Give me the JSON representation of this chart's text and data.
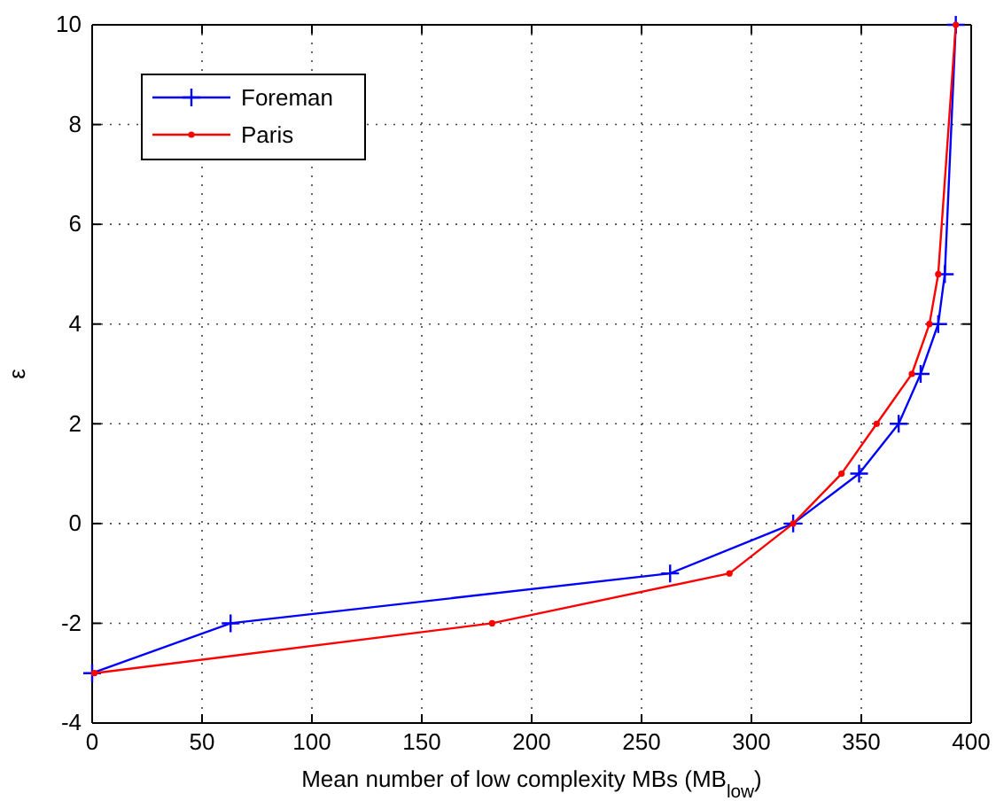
{
  "chart_data": {
    "type": "line",
    "xlabel": "Mean number of low complexity MBs (MB$_{low}$)",
    "ylabel": "ε",
    "xlim": [
      0,
      400
    ],
    "xticks": [
      0,
      50,
      100,
      150,
      200,
      250,
      300,
      350,
      400
    ],
    "ylim": [
      -4,
      10
    ],
    "yticks": [
      -4,
      -2,
      0,
      2,
      4,
      6,
      8,
      10
    ],
    "grid": true,
    "legend": "top left",
    "line_style": "solid",
    "series": [
      {
        "name": "Foreman",
        "color": "#0000ff",
        "marker": "cross",
        "x": [
          0,
          63,
          263,
          319,
          349,
          367,
          377,
          385,
          388,
          393
        ],
        "values": [
          -3,
          -2,
          -1,
          0,
          1,
          2,
          3,
          4,
          5,
          10
        ]
      },
      {
        "name": "Paris",
        "color": "#ff0000",
        "marker": "circle",
        "x": [
          1,
          182,
          290,
          319,
          341,
          357,
          373,
          381,
          385,
          393
        ],
        "values": [
          -3,
          -2,
          -1,
          0,
          1,
          2,
          3,
          4,
          5,
          10
        ]
      }
    ]
  }
}
